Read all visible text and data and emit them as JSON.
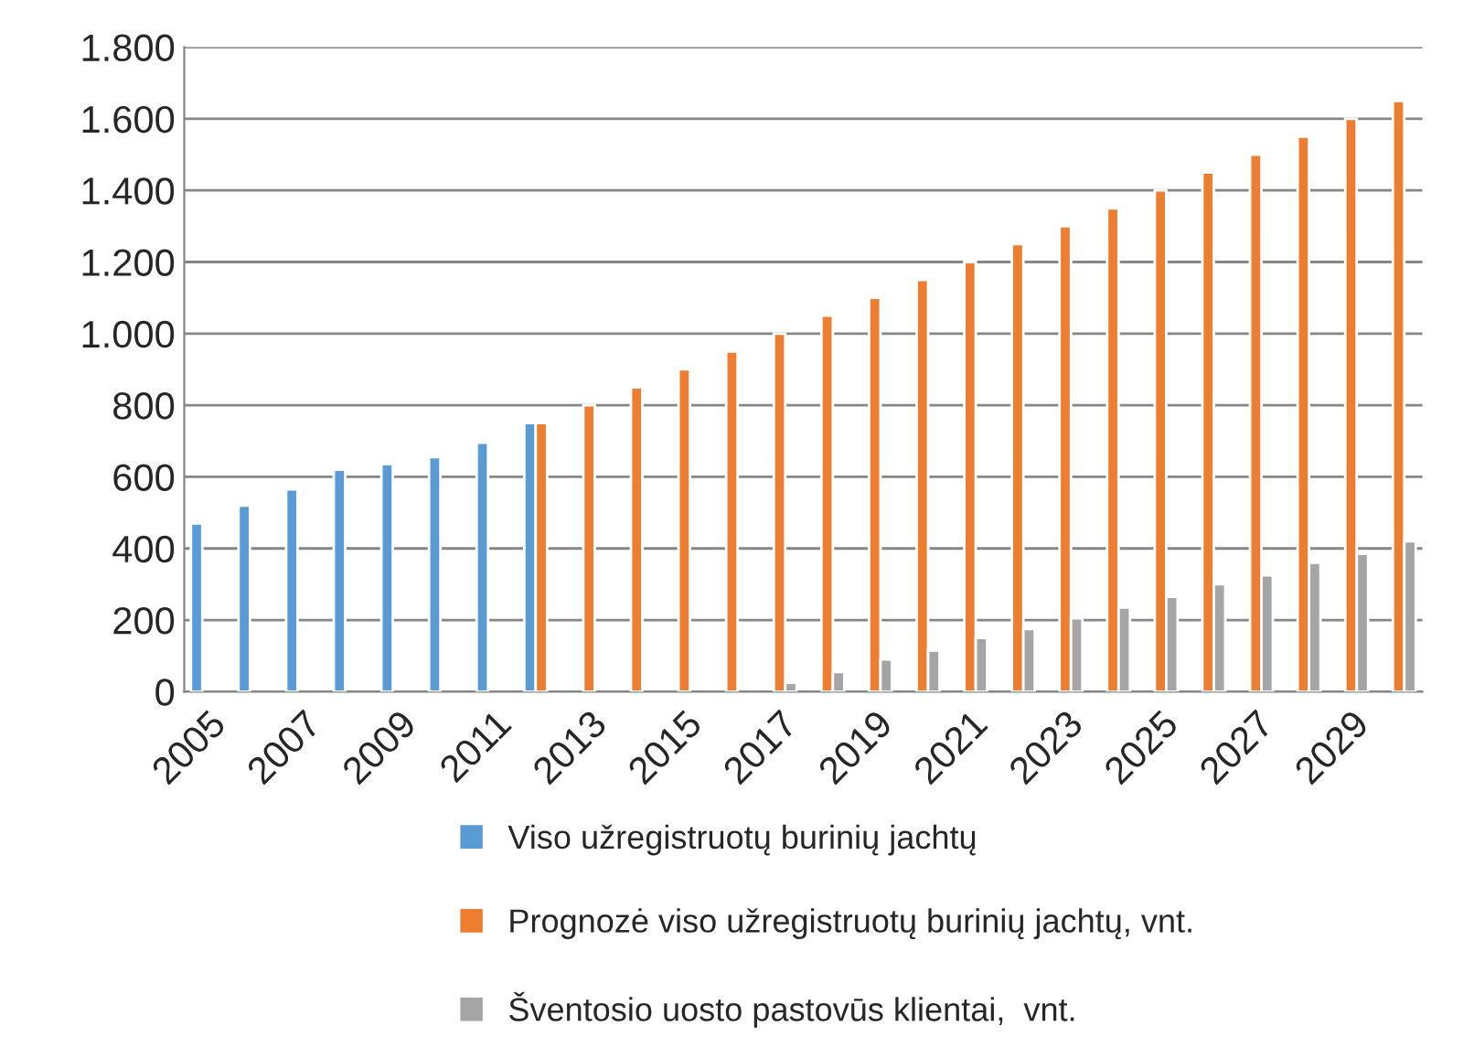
{
  "chart_data": {
    "type": "bar",
    "categories": [
      "2005",
      null,
      "2007",
      null,
      "2009",
      null,
      "2011",
      null,
      "2013",
      null,
      "2015",
      null,
      "2017",
      null,
      "2019",
      null,
      "2021",
      null,
      "2023",
      null,
      "2025",
      null,
      "2027",
      null,
      "2029",
      null
    ],
    "series": [
      {
        "name": "Viso užregistruotų burinių jachtų",
        "color": "#5b9bd5",
        "values": [
          470,
          520,
          565,
          620,
          635,
          655,
          695,
          750,
          null,
          null,
          null,
          null,
          null,
          null,
          null,
          null,
          null,
          null,
          null,
          null,
          null,
          null,
          null,
          null,
          null,
          null
        ]
      },
      {
        "name": "Prognozė viso užregistruotų burinių jachtų, vnt.",
        "color": "#ed7d31",
        "values": [
          null,
          null,
          null,
          null,
          null,
          null,
          null,
          750,
          800,
          850,
          900,
          950,
          1000,
          1050,
          1100,
          1150,
          1200,
          1250,
          1300,
          1350,
          1400,
          1450,
          1500,
          1550,
          1600,
          1650
        ]
      },
      {
        "name": "Šventosio uosto pastovūs klientai,  vnt.",
        "color": "#a5a5a5",
        "values": [
          null,
          null,
          null,
          null,
          null,
          null,
          null,
          null,
          null,
          null,
          null,
          null,
          25,
          55,
          90,
          115,
          150,
          175,
          205,
          235,
          265,
          300,
          325,
          360,
          385,
          420
        ]
      }
    ],
    "ylim": [
      0,
      1800
    ],
    "yticks": [
      {
        "value": 0,
        "label": "0"
      },
      {
        "value": 200,
        "label": "200"
      },
      {
        "value": 400,
        "label": "400"
      },
      {
        "value": 600,
        "label": "600"
      },
      {
        "value": 800,
        "label": "800"
      },
      {
        "value": 1000,
        "label": "1.000"
      },
      {
        "value": 1200,
        "label": "1.200"
      },
      {
        "value": 1400,
        "label": "1.400"
      },
      {
        "value": 1600,
        "label": "1.600"
      },
      {
        "value": 1800,
        "label": "1.800"
      }
    ],
    "grid": "y",
    "legend": "bottom"
  }
}
